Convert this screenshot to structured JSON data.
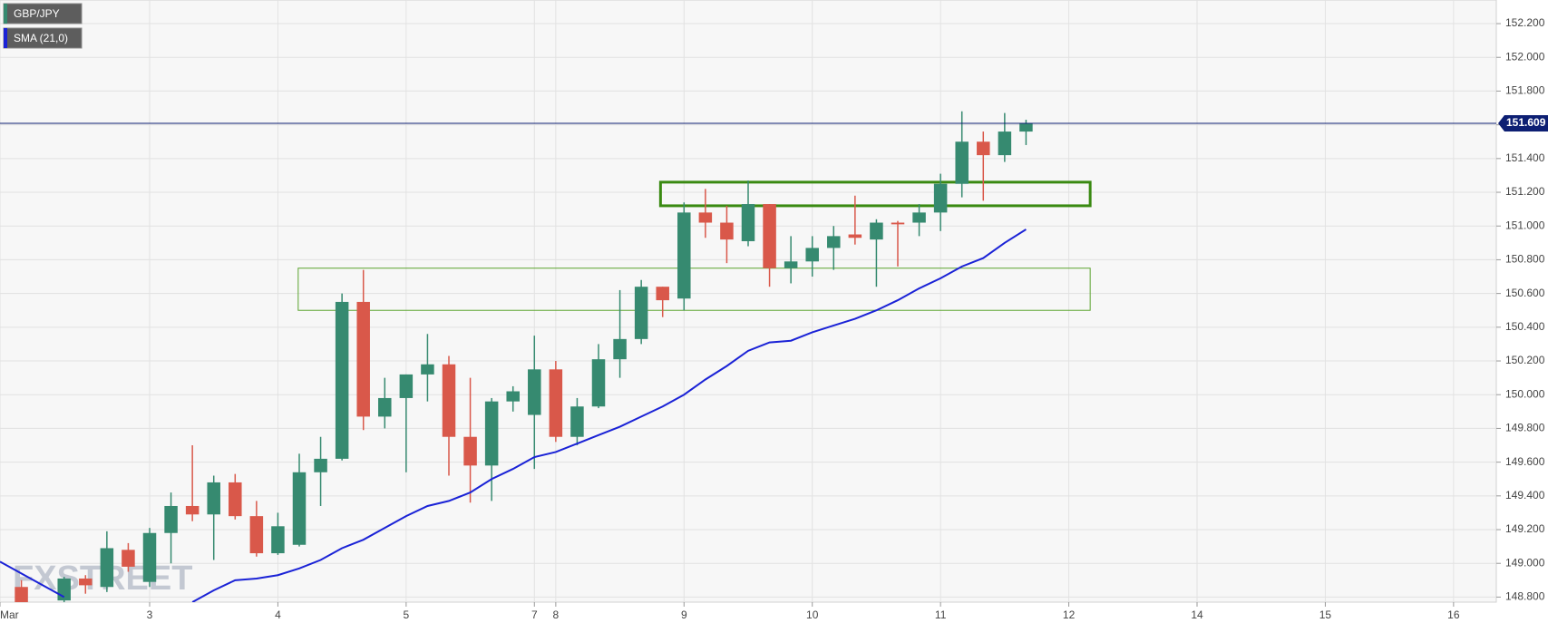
{
  "chart_data": {
    "type": "candlestick",
    "watermark": "FXSTREET",
    "xlim": [
      0,
      70
    ],
    "ylim": [
      148.77,
      152.34
    ],
    "xticks": [
      {
        "value": 0,
        "label": "Mar"
      },
      {
        "value": 7,
        "label": "3"
      },
      {
        "value": 13,
        "label": "4"
      },
      {
        "value": 19,
        "label": "5"
      },
      {
        "value": 25,
        "label": "7"
      },
      {
        "value": 26,
        "label": "8"
      },
      {
        "value": 32,
        "label": "9"
      },
      {
        "value": 38,
        "label": "10"
      },
      {
        "value": 44,
        "label": "11"
      },
      {
        "value": 50,
        "label": "12"
      },
      {
        "value": 56,
        "label": "14"
      },
      {
        "value": 62,
        "label": "15"
      },
      {
        "value": 68,
        "label": "16"
      }
    ],
    "yticks": [
      {
        "value": 148.8,
        "label": "148.800"
      },
      {
        "value": 149.0,
        "label": "149.000"
      },
      {
        "value": 149.2,
        "label": "149.200"
      },
      {
        "value": 149.4,
        "label": "149.400"
      },
      {
        "value": 149.6,
        "label": "149.600"
      },
      {
        "value": 149.8,
        "label": "149.800"
      },
      {
        "value": 150.0,
        "label": "150.000"
      },
      {
        "value": 150.2,
        "label": "150.200"
      },
      {
        "value": 150.4,
        "label": "150.400"
      },
      {
        "value": 150.6,
        "label": "150.600"
      },
      {
        "value": 150.8,
        "label": "150.800"
      },
      {
        "value": 151.0,
        "label": "151.000"
      },
      {
        "value": 151.2,
        "label": "151.200"
      },
      {
        "value": 151.4,
        "label": "151.400"
      },
      {
        "value": 151.6,
        "label": "151.600"
      },
      {
        "value": 151.8,
        "label": "151.800"
      },
      {
        "value": 152.0,
        "label": "152.000"
      },
      {
        "value": 152.2,
        "label": "152.200"
      }
    ],
    "grid": true,
    "last_price": 151.609,
    "last_price_color": "#0d1f73",
    "series": [
      {
        "name": "GBP/JPY",
        "type": "candlestick",
        "up_color": "#368a70",
        "down_color": "#d9584a",
        "x": [
          1,
          3,
          4,
          5,
          6,
          7,
          8,
          9,
          10,
          11,
          12,
          13,
          14,
          15,
          16,
          17,
          18,
          19,
          20,
          21,
          22,
          23,
          24,
          25,
          26,
          27,
          28,
          29,
          30,
          31,
          32,
          33,
          34,
          35,
          36,
          37,
          38,
          39,
          40,
          41,
          42,
          43,
          44,
          45,
          46,
          47,
          48
        ],
        "open": [
          148.86,
          148.78,
          148.91,
          148.86,
          149.08,
          148.89,
          149.18,
          149.34,
          149.29,
          149.48,
          149.28,
          149.06,
          149.11,
          149.54,
          149.62,
          150.55,
          149.87,
          149.98,
          150.12,
          150.18,
          149.75,
          149.58,
          149.96,
          149.88,
          150.15,
          149.75,
          149.93,
          150.21,
          150.33,
          150.64,
          150.57,
          151.08,
          151.02,
          150.91,
          151.13,
          150.75,
          150.79,
          150.87,
          150.95,
          150.92,
          151.02,
          151.02,
          151.08,
          151.25,
          151.5,
          151.42,
          151.56
        ],
        "high": [
          148.9,
          148.92,
          148.93,
          149.19,
          149.12,
          149.21,
          149.42,
          149.7,
          149.52,
          149.53,
          149.37,
          149.3,
          149.65,
          149.75,
          150.6,
          150.74,
          150.1,
          150.12,
          150.36,
          150.23,
          150.1,
          149.98,
          150.05,
          150.35,
          150.2,
          149.98,
          150.3,
          150.62,
          150.68,
          150.64,
          151.14,
          151.22,
          151.12,
          151.27,
          151.13,
          150.94,
          150.94,
          151.0,
          151.18,
          151.04,
          151.03,
          151.13,
          151.31,
          151.68,
          151.56,
          151.67,
          151.63
        ],
        "low": [
          148.77,
          148.77,
          148.82,
          148.83,
          148.95,
          148.86,
          149.0,
          149.25,
          149.02,
          149.26,
          149.04,
          149.05,
          149.1,
          149.34,
          149.61,
          149.79,
          149.8,
          149.54,
          149.96,
          149.52,
          149.36,
          149.37,
          149.9,
          149.56,
          149.72,
          149.7,
          149.92,
          150.1,
          150.3,
          150.46,
          150.5,
          150.93,
          150.78,
          150.88,
          150.64,
          150.66,
          150.7,
          150.74,
          150.89,
          150.64,
          150.76,
          150.94,
          150.97,
          151.17,
          151.15,
          151.38,
          151.48
        ],
        "close": [
          148.77,
          148.91,
          148.87,
          149.09,
          148.98,
          149.18,
          149.34,
          149.29,
          149.48,
          149.28,
          149.06,
          149.22,
          149.54,
          149.62,
          150.55,
          149.87,
          149.98,
          150.12,
          150.18,
          149.75,
          149.58,
          149.96,
          150.02,
          150.15,
          149.75,
          149.93,
          150.21,
          150.33,
          150.64,
          150.56,
          151.08,
          151.02,
          150.92,
          151.13,
          150.75,
          150.79,
          150.87,
          150.94,
          150.93,
          151.02,
          151.01,
          151.08,
          151.25,
          151.5,
          151.42,
          151.56,
          151.61
        ]
      },
      {
        "name": "SMA (21,0)",
        "type": "line",
        "color": "#1a22d6",
        "x": [
          0,
          1,
          2,
          3,
          4,
          5,
          6,
          7,
          8,
          9,
          10,
          11,
          12,
          13,
          14,
          15,
          16,
          17,
          18,
          19,
          20,
          21,
          22,
          23,
          24,
          25,
          26,
          27,
          28,
          29,
          30,
          31,
          32,
          33,
          34,
          35,
          36,
          37,
          38,
          39,
          40,
          41,
          42,
          43,
          44,
          45,
          46,
          47,
          48
        ],
        "values": [
          149.01,
          148.94,
          148.87,
          148.8,
          null,
          null,
          null,
          null,
          null,
          148.77,
          148.84,
          148.9,
          148.91,
          148.93,
          148.97,
          149.02,
          149.09,
          149.14,
          149.21,
          149.28,
          149.34,
          149.37,
          149.42,
          149.5,
          149.56,
          149.63,
          149.66,
          149.71,
          149.76,
          149.81,
          149.87,
          149.93,
          150.0,
          150.09,
          150.17,
          150.26,
          150.31,
          150.32,
          150.37,
          150.41,
          150.45,
          150.5,
          150.56,
          150.63,
          150.69,
          150.76,
          150.81,
          150.9,
          150.98
        ]
      }
    ],
    "zones": [
      {
        "xlim": [
          30.9,
          51
        ],
        "ylim": [
          151.12,
          151.26
        ],
        "color": "#3a8a12",
        "line_width": 3
      },
      {
        "xlim": [
          13.95,
          51
        ],
        "ylim": [
          150.5,
          150.75
        ],
        "color": "#5ba32e",
        "line_width": 1
      }
    ]
  }
}
